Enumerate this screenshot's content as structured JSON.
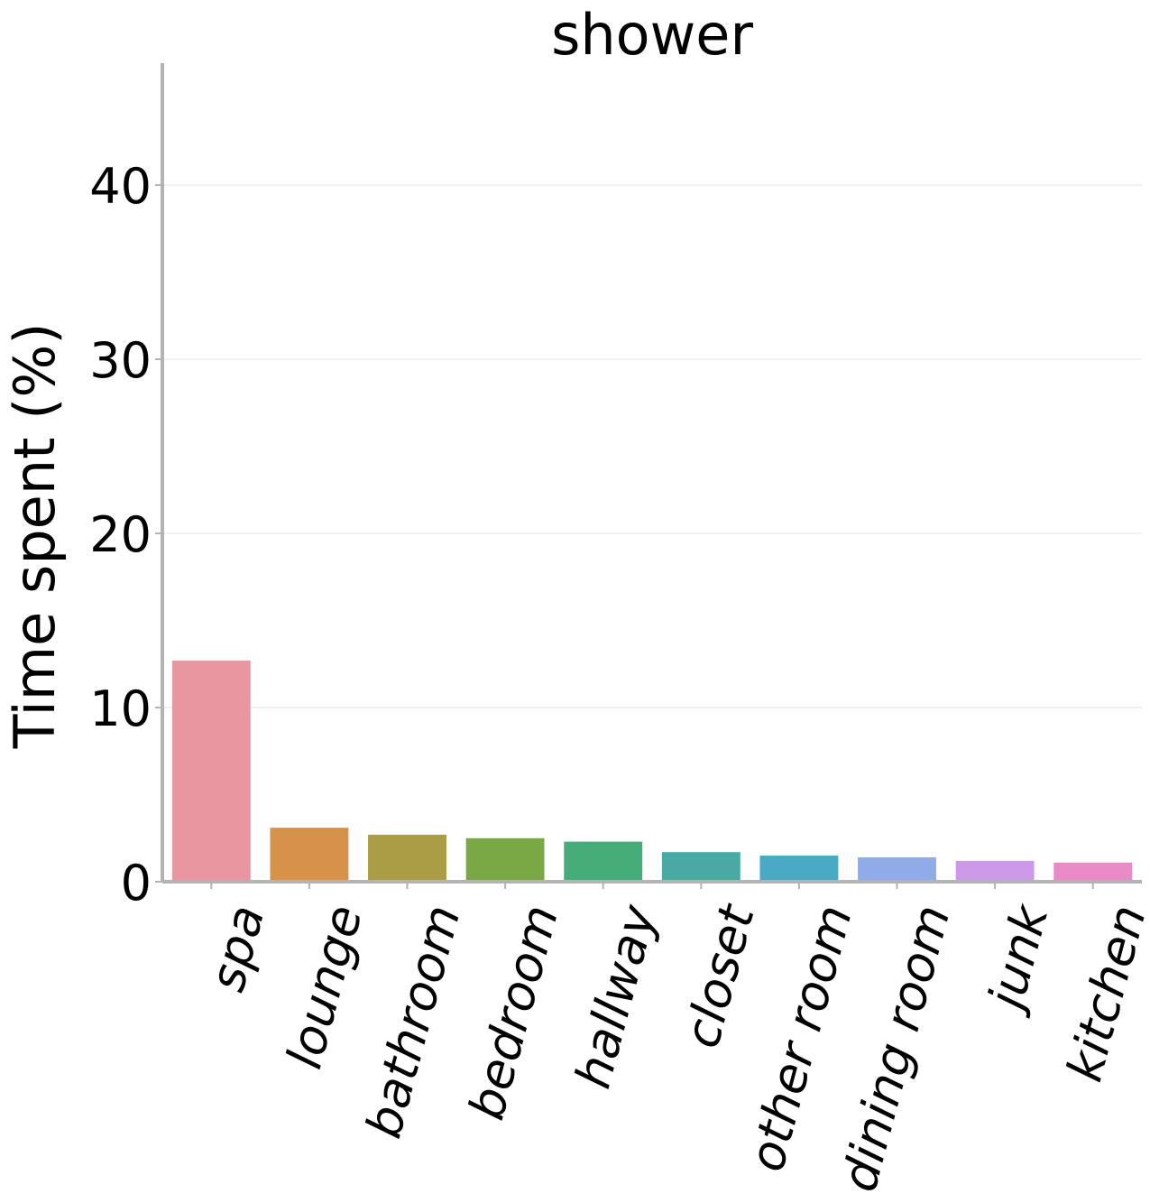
{
  "chart_data": {
    "type": "bar",
    "title": "shower",
    "xlabel": "",
    "ylabel": "Time spent (%)",
    "categories": [
      "spa",
      "lounge",
      "bathroom",
      "bedroom",
      "hallway",
      "closet",
      "other room",
      "dining room",
      "junk",
      "kitchen"
    ],
    "values": [
      12.7,
      3.1,
      2.7,
      2.5,
      2.3,
      1.7,
      1.5,
      1.4,
      1.2,
      1.1
    ],
    "colors": [
      "#e8969f",
      "#d6924a",
      "#aa9d45",
      "#7aa845",
      "#47ad78",
      "#48aaa3",
      "#4aaac6",
      "#8fabe8",
      "#cc99e8",
      "#e88cc8"
    ],
    "yticks": [
      0,
      10,
      20,
      30,
      40
    ],
    "ylim": [
      0,
      47
    ],
    "grid": "horizontal",
    "legend": "none"
  }
}
